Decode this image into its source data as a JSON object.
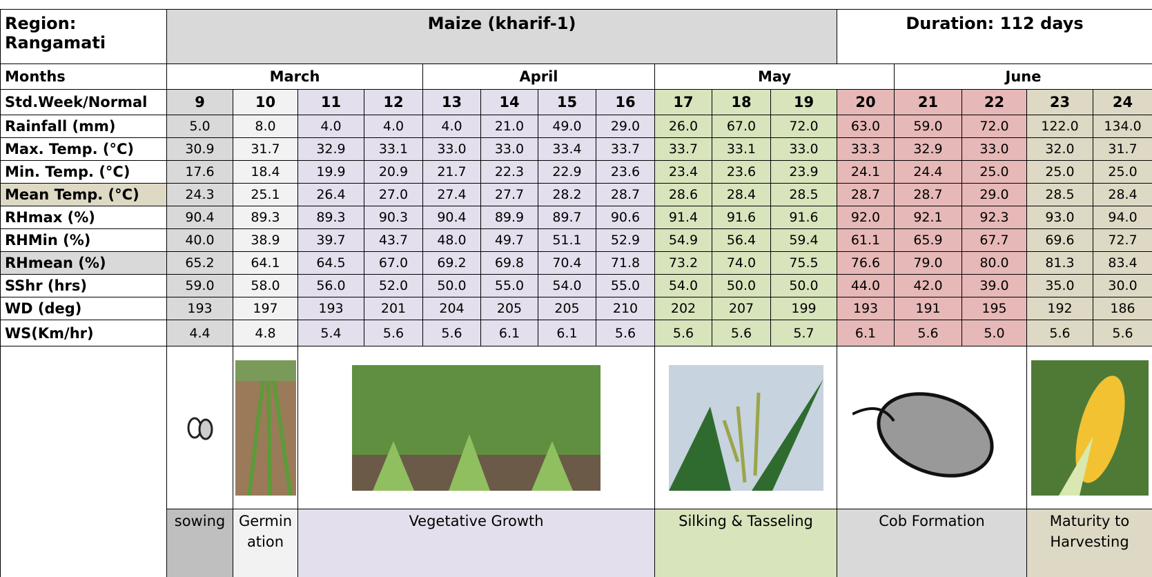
{
  "header": {
    "region": "Region: Rangamati",
    "crop": "Maize (kharif-1)",
    "duration": "Duration: 112 days"
  },
  "months": {
    "label": "Months",
    "items": [
      "March",
      "April",
      "May",
      "June"
    ]
  },
  "weeks": {
    "label": "Std.Week/Normal",
    "items": [
      "9",
      "10",
      "11",
      "12",
      "13",
      "14",
      "15",
      "16",
      "17",
      "18",
      "19",
      "20",
      "21",
      "22",
      "23",
      "24"
    ]
  },
  "rows": [
    {
      "label": "Rainfall (mm)",
      "values": [
        "5.0",
        "8.0",
        "4.0",
        "4.0",
        "4.0",
        "21.0",
        "49.0",
        "29.0",
        "26.0",
        "67.0",
        "72.0",
        "63.0",
        "59.0",
        "72.0",
        "122.0",
        "134.0"
      ]
    },
    {
      "label": "Max. Temp. (°C)",
      "values": [
        "30.9",
        "31.7",
        "32.9",
        "33.1",
        "33.0",
        "33.0",
        "33.4",
        "33.7",
        "33.7",
        "33.1",
        "33.0",
        "33.3",
        "32.9",
        "33.0",
        "32.0",
        "31.7"
      ]
    },
    {
      "label": "Min. Temp. (°C)",
      "values": [
        "17.6",
        "18.4",
        "19.9",
        "20.9",
        "21.7",
        "22.3",
        "22.9",
        "23.6",
        "23.4",
        "23.6",
        "23.9",
        "24.1",
        "24.4",
        "25.0",
        "25.0",
        "25.0"
      ]
    },
    {
      "label": "Mean Temp. (°C)",
      "values": [
        "24.3",
        "25.1",
        "26.4",
        "27.0",
        "27.4",
        "27.7",
        "28.2",
        "28.7",
        "28.6",
        "28.4",
        "28.5",
        "28.7",
        "28.7",
        "29.0",
        "28.5",
        "28.4"
      ]
    },
    {
      "label": "RHmax (%)",
      "values": [
        "90.4",
        "89.3",
        "89.3",
        "90.3",
        "90.4",
        "89.9",
        "89.7",
        "90.6",
        "91.4",
        "91.6",
        "91.6",
        "92.0",
        "92.1",
        "92.3",
        "93.0",
        "94.0"
      ]
    },
    {
      "label": "RHMin (%)",
      "values": [
        "40.0",
        "38.9",
        "39.7",
        "43.7",
        "48.0",
        "49.7",
        "51.1",
        "52.9",
        "54.9",
        "56.4",
        "59.4",
        "61.1",
        "65.9",
        "67.7",
        "69.6",
        "72.7"
      ]
    },
    {
      "label": "RHmean (%)",
      "values": [
        "65.2",
        "64.1",
        "64.5",
        "67.0",
        "69.2",
        "69.8",
        "70.4",
        "71.8",
        "73.2",
        "74.0",
        "75.5",
        "76.6",
        "79.0",
        "80.0",
        "81.3",
        "83.4"
      ]
    },
    {
      "label": "SShr (hrs)",
      "values": [
        "59.0",
        "58.0",
        "56.0",
        "52.0",
        "50.0",
        "55.0",
        "54.0",
        "55.0",
        "54.0",
        "50.0",
        "50.0",
        "44.0",
        "42.0",
        "39.0",
        "35.0",
        "30.0"
      ]
    },
    {
      "label": "WD (deg)",
      "values": [
        "193",
        "197",
        "193",
        "201",
        "204",
        "205",
        "205",
        "210",
        "202",
        "207",
        "199",
        "193",
        "191",
        "195",
        "192",
        "186"
      ]
    },
    {
      "label": "WS(Km/hr)",
      "values": [
        "4.4",
        "4.8",
        "5.4",
        "5.6",
        "5.6",
        "6.1",
        "6.1",
        "5.6",
        "5.6",
        "5.6",
        "5.7",
        "6.1",
        "5.6",
        "5.0",
        "5.6",
        "5.6"
      ]
    }
  ],
  "stages": [
    "sowing",
    "Germination",
    "Vegetative Growth",
    "Silking & Tasseling",
    "Cob Formation",
    "Maturity to Harvesting"
  ]
}
